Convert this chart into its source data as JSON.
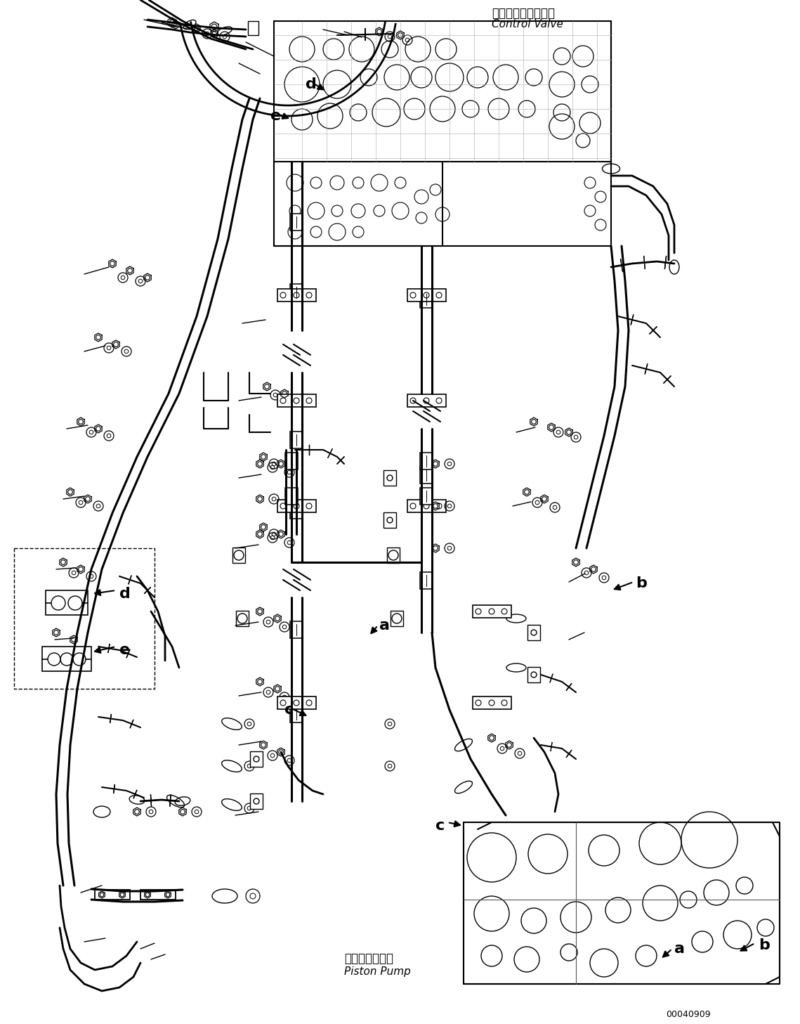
{
  "background_color": "#ffffff",
  "line_color": "#000000",
  "fig_width": 11.39,
  "fig_height": 14.57,
  "dpi": 100,
  "control_valve_label_jp": "コントロールバルブ",
  "control_valve_label_en": "Control Valve",
  "piston_pump_label_jp": "ピストンポンプ",
  "piston_pump_label_en": "Piston Pump",
  "part_number": "00040909",
  "font_size_labels": 16,
  "font_size_component": 11,
  "font_size_partnumber": 9
}
